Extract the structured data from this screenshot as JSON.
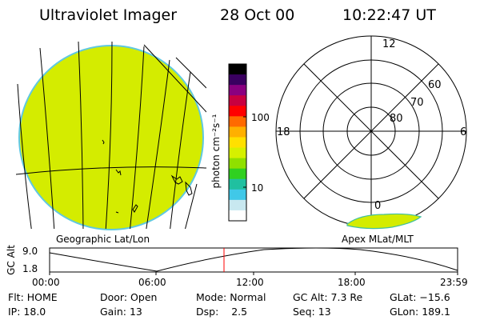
{
  "header": {
    "instrument": "Ultraviolet Imager",
    "date": "28 Oct 00",
    "time": "10:22:47 UT"
  },
  "colorbar": {
    "unit_label": "photon cm⁻²s⁻¹",
    "tick_100": "100",
    "tick_10": "10",
    "colors": [
      "#000000",
      "#3a0060",
      "#8a0080",
      "#c80040",
      "#ff0000",
      "#ff6a00",
      "#ffb000",
      "#ffe000",
      "#d6f000",
      "#90e000",
      "#30d020",
      "#20c0a0",
      "#40c8e8",
      "#c8e8f0",
      "#ffffff"
    ]
  },
  "left_panel": {
    "label": "Geographic Lat/Lon",
    "disk_color": "#d4ec00",
    "disk_edge_color": "#60c8e0"
  },
  "right_panel": {
    "label": "Apex MLat/MLT",
    "mlt_top": "12",
    "mlt_left": "18",
    "mlt_right": "6",
    "mlt_bottom": "0",
    "lat_60": "60",
    "lat_70": "70",
    "lat_80": "80"
  },
  "altitude_plot": {
    "axis_title": "GC Alt",
    "y_high": "9.0",
    "y_low": "1.8",
    "x_ticks": [
      "00:00",
      "06:00",
      "12:00",
      "18:00",
      "23:59"
    ],
    "marker_color": "#ff0000"
  },
  "status": {
    "flt_label": "Flt:",
    "flt_value": "HOME",
    "ip_label": "IP:",
    "ip_value": "18.0",
    "door_label": "Door:",
    "door_value": "Open",
    "gain_label": "Gain:",
    "gain_value": "13",
    "mode_label": "Mode:",
    "mode_value": "Normal",
    "dsp_label": "Dsp:",
    "dsp_value": "2.5",
    "gcalt_label": "GC Alt:",
    "gcalt_value": "7.3 Re",
    "seq_label": "Seq:",
    "seq_value": "13",
    "glat_label": "GLat:",
    "glat_value": "−15.6",
    "glon_label": "GLon:",
    "glon_value": "189.1"
  }
}
